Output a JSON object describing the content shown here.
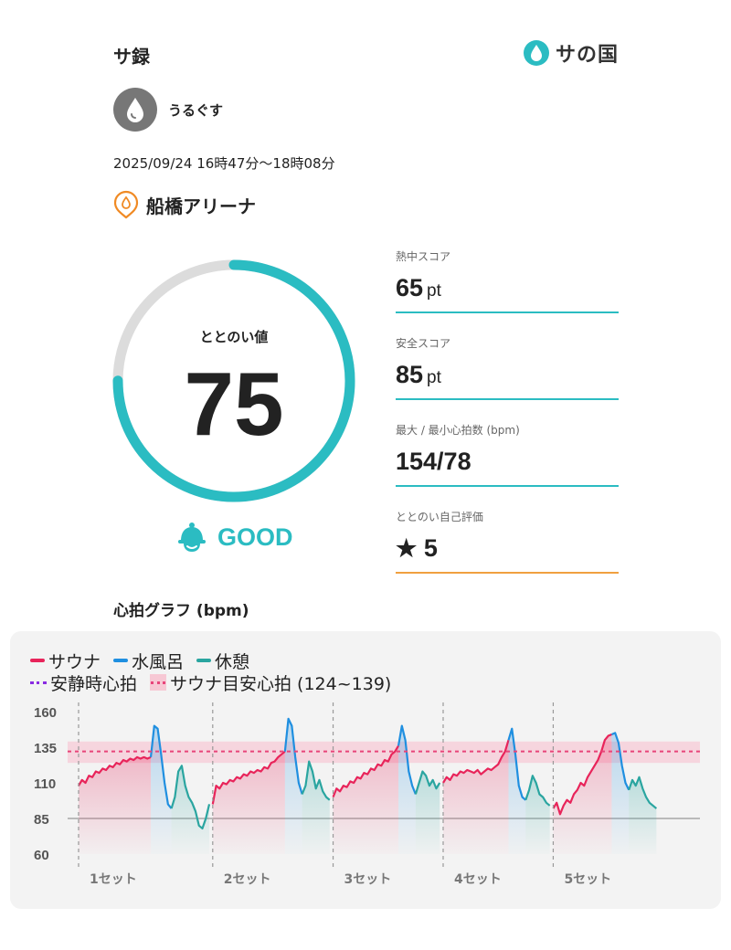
{
  "header": {
    "title": "サ録",
    "brand_text": "サの国"
  },
  "user": {
    "name": "うるぐす"
  },
  "session": {
    "datetime": "2025/09/24 16時47分〜18時08分"
  },
  "facility": {
    "name": "船橋アリーナ"
  },
  "score": {
    "label": "ととのい値",
    "value": "75",
    "fraction": 0.75,
    "rating": "GOOD"
  },
  "stats": [
    {
      "label": "熱中スコア",
      "value": "65",
      "unit": "pt"
    },
    {
      "label": "安全スコア",
      "value": "85",
      "unit": "pt"
    },
    {
      "label": "最大 / 最小心拍数 (bpm)",
      "value": "154/78",
      "unit": ""
    },
    {
      "label": "ととのい自己評価",
      "value": "5",
      "unit": "",
      "star": "★"
    }
  ],
  "graph": {
    "title": "心拍グラフ (bpm)",
    "legend": {
      "sauna": "サウナ",
      "cold": "水風呂",
      "rest": "休憩",
      "resting": "安静時心拍",
      "target": "サウナ目安心拍 (124~139)"
    }
  },
  "colors": {
    "accent": "#2bbcc2",
    "sauna": "#e8245a",
    "cold": "#1f8fe0",
    "rest": "#2aa5a0",
    "resting": "#8a2be2",
    "target": "#e8457a",
    "orange": "#f08a24"
  },
  "chart_data": {
    "type": "line",
    "ylabel": "",
    "xlabel": "",
    "ylim": [
      60,
      160
    ],
    "y_ticks": [
      "160",
      "135",
      "110",
      "85",
      "60"
    ],
    "y_tick_values": [
      160,
      135,
      110,
      85,
      60
    ],
    "target_band": [
      124,
      139
    ],
    "target_line": 132,
    "resting_line": 85,
    "x_tick_labels": [
      "1セット",
      "2セット",
      "3セット",
      "4セット",
      "5セット"
    ],
    "sets": [
      {
        "sauna": [
          108,
          112,
          110,
          115,
          114,
          118,
          117,
          120,
          119,
          122,
          121,
          124,
          123,
          126,
          125,
          127,
          126,
          128,
          127,
          128,
          127,
          128
        ],
        "cold": [
          128,
          150,
          148,
          130,
          110,
          95,
          92
        ],
        "rest": [
          92,
          100,
          118,
          122,
          108,
          100,
          96,
          90,
          80,
          78,
          85,
          95
        ]
      },
      {
        "sauna": [
          95,
          108,
          106,
          110,
          109,
          112,
          111,
          114,
          113,
          116,
          115,
          118,
          117,
          119,
          118,
          121,
          120,
          124,
          125,
          128,
          130,
          132
        ],
        "cold": [
          132,
          155,
          150,
          128,
          110,
          102
        ],
        "rest": [
          102,
          108,
          125,
          118,
          106,
          112,
          104,
          100,
          98
        ]
      },
      {
        "sauna": [
          100,
          106,
          104,
          108,
          107,
          111,
          110,
          114,
          113,
          117,
          116,
          120,
          119,
          123,
          122,
          126,
          125,
          130,
          132,
          136
        ],
        "cold": [
          136,
          150,
          140,
          118,
          108,
          102
        ],
        "rest": [
          102,
          110,
          118,
          115,
          108,
          112,
          106,
          110
        ]
      },
      {
        "sauna": [
          110,
          114,
          112,
          116,
          115,
          118,
          117,
          119,
          118,
          117,
          119,
          116,
          118,
          120,
          119,
          121,
          123,
          128,
          132,
          140
        ],
        "cold": [
          140,
          148,
          130,
          108,
          100,
          98
        ],
        "rest": [
          98,
          105,
          115,
          110,
          102,
          100,
          96,
          94
        ]
      },
      {
        "sauna": [
          92,
          96,
          88,
          94,
          98,
          96,
          102,
          105,
          110,
          108,
          114,
          118,
          122,
          126,
          132,
          140,
          143,
          144
        ],
        "cold": [
          144,
          145,
          138,
          122,
          110,
          105
        ],
        "rest": [
          105,
          112,
          108,
          114,
          106,
          100,
          96,
          94,
          92
        ]
      }
    ]
  }
}
